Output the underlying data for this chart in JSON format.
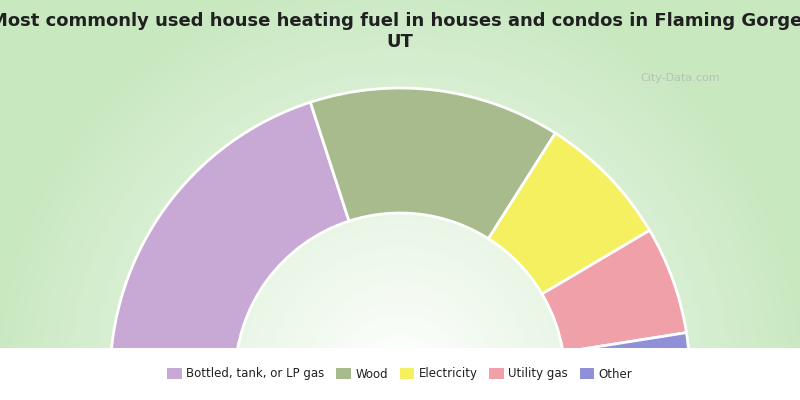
{
  "title": "Most commonly used house heating fuel in houses and condos in Flaming Gorge,\nUT",
  "segments": [
    {
      "label": "Bottled, tank, or LP gas",
      "value": 40,
      "color": "#C8A8D4"
    },
    {
      "label": "Wood",
      "value": 28,
      "color": "#A8BB8C"
    },
    {
      "label": "Electricity",
      "value": 15,
      "color": "#F5F060"
    },
    {
      "label": "Utility gas",
      "value": 12,
      "color": "#F0A0A8"
    },
    {
      "label": "Other",
      "value": 5,
      "color": "#9090D8"
    }
  ],
  "bg_color": "#FFFFFF",
  "chart_bg_outer": "#C8E8C0",
  "chart_bg_inner": "#FFFFFF",
  "legend_bg": "#FFFFFF",
  "title_color": "#202020",
  "title_fontsize": 13,
  "watermark": "City-Data.com",
  "watermark_color": "#B0B0B0"
}
